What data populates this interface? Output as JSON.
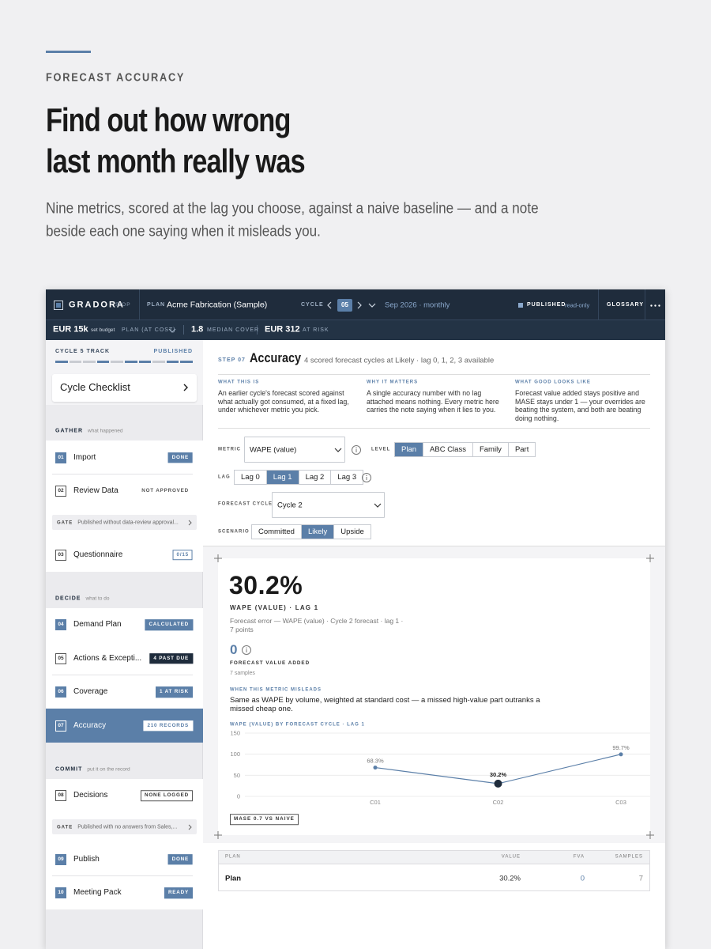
{
  "hero": {
    "eyebrow": "FORECAST ACCURACY",
    "title": [
      "Find out how wrong",
      "last month really was"
    ],
    "lede": [
      "Nine metrics, scored at the lag you choose, against a naive baseline — and a note",
      "beside each one saying when it misleads you."
    ]
  },
  "topbar": {
    "brand": "GRADORA",
    "brand_tag": "SIOP",
    "plan_label": "PLAN",
    "plan": "Acme Fabrication (Sample)",
    "cycle_label": "CYCLE",
    "cycle": "05",
    "period": "Sep 2026 · monthly",
    "status": "PUBLISHED",
    "status_note": "read-only",
    "glossary": "GLOSSARY"
  },
  "summary": {
    "budget": "EUR 15k",
    "budget_note": "set budget",
    "budget_basis": "PLAN (AT COST)",
    "cover": "1.8",
    "cover_label": "MEDIAN COVER",
    "risk": "EUR 312",
    "risk_label": "AT RISK"
  },
  "sidebar": {
    "track": "CYCLE 5 TRACK",
    "track_status": "PUBLISHED",
    "checklist": "Cycle Checklist",
    "sections": [
      {
        "title": "GATHER",
        "subtitle": "what happened",
        "items": [
          {
            "number": "01",
            "label": "Import",
            "badge": "DONE"
          },
          {
            "number": "02",
            "label": "Review Data",
            "badge": "NOT APPROVED"
          },
          {
            "gate": "GATE",
            "text": "Published without data-review approval..."
          },
          {
            "number": "03",
            "label": "Questionnaire",
            "badge": "0/15"
          }
        ]
      },
      {
        "title": "DECIDE",
        "subtitle": "what to do",
        "items": [
          {
            "number": "04",
            "label": "Demand Plan",
            "badge": "CALCULATED"
          },
          {
            "number": "05",
            "label": "Actions & Excepti...",
            "badge": "4 PAST DUE"
          },
          {
            "number": "06",
            "label": "Coverage",
            "badge": "1 AT RISK"
          },
          {
            "number": "07",
            "label": "Accuracy",
            "badge": "210 RECORDS"
          }
        ]
      },
      {
        "title": "COMMIT",
        "subtitle": "put it on the record",
        "items": [
          {
            "number": "08",
            "label": "Decisions",
            "badge": "NONE LOGGED"
          },
          {
            "gate": "GATE",
            "text": "Published with no answers from Sales,..."
          },
          {
            "number": "09",
            "label": "Publish",
            "badge": "DONE"
          },
          {
            "number": "10",
            "label": "Meeting Pack",
            "badge": "READY"
          }
        ]
      }
    ]
  },
  "header": {
    "step": "STEP 07",
    "title": "Accuracy",
    "subtitle": "4 scored forecast cycles at Likely · lag 0, 1, 2, 3 available"
  },
  "notes": [
    {
      "heading": "WHAT THIS IS",
      "text": "An earlier cycle's forecast scored against what actually got consumed, at a fixed lag, under whichever metric you pick."
    },
    {
      "heading": "WHY IT MATTERS",
      "text": "A single accuracy number with no lag attached means nothing. Every metric here carries the note saying when it lies to you."
    },
    {
      "heading": "WHAT GOOD LOOKS LIKE",
      "text": "Forecast value added stays positive and MASE stays under 1 — your overrides are beating the system, and both are beating doing nothing."
    }
  ],
  "controls": {
    "metric": {
      "label": "METRIC",
      "value": "WAPE (value)"
    },
    "level": {
      "label": "LEVEL",
      "options": [
        "Plan",
        "ABC Class",
        "Family",
        "Part"
      ],
      "active": 0
    },
    "lag": {
      "label": "LAG",
      "options": [
        "Lag 0",
        "Lag 1",
        "Lag 2",
        "Lag 3"
      ],
      "active": 1
    },
    "cycle": {
      "label": "FORECAST CYCLE",
      "value": "Cycle 2"
    },
    "scenario": {
      "label": "SCENARIO",
      "options": [
        "Committed",
        "Likely",
        "Upside"
      ],
      "active": 1
    }
  },
  "result": {
    "value": "30.2%",
    "label": "WAPE (VALUE) · LAG 1",
    "description": "Forecast error — WAPE (value) · Cycle 2 forecast · lag 1 ·",
    "points": "7 points",
    "fva": "0",
    "fva_label": "FORECAST VALUE ADDED",
    "fva_samples": "7 samples",
    "misleads_heading": "WHEN THIS METRIC MISLEADS",
    "misleads": "Same as WAPE by volume, weighted at standard cost — a missed high-value part outranks a missed cheap one.",
    "mase": "MASE 0.7 VS NAIVE"
  },
  "chart_data": {
    "type": "line",
    "title": "WAPE (VALUE) BY FORECAST CYCLE · LAG 1",
    "categories": [
      "C01",
      "C02",
      "C03"
    ],
    "values": [
      68.3,
      30.2,
      99.7
    ],
    "value_labels": [
      "68.3%",
      "30.2%",
      "99.7%"
    ],
    "highlight": 1,
    "ylim": [
      0,
      150
    ],
    "yticks": [
      0,
      50,
      100,
      150
    ],
    "grid": true,
    "color": "#5b7fa8"
  },
  "table": {
    "columns": [
      "PLAN",
      "VALUE",
      "FVA",
      "SAMPLES"
    ],
    "rows": [
      [
        "Plan",
        "30.2%",
        "0",
        "7"
      ]
    ]
  }
}
